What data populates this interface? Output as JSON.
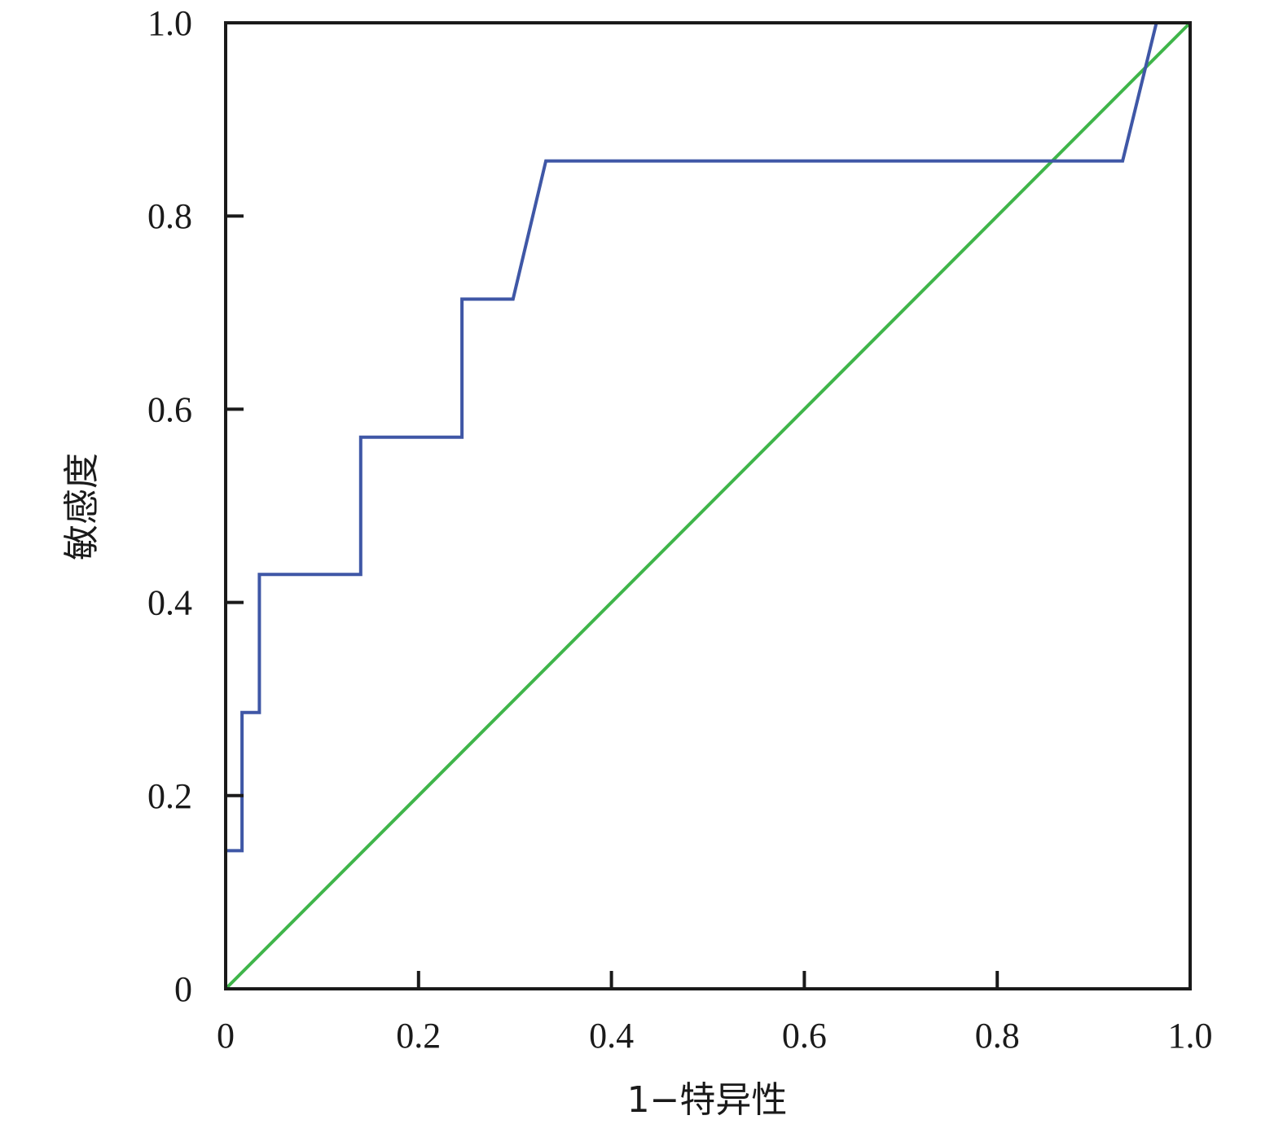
{
  "chart_data": {
    "type": "line",
    "xlabel": "1−特异性",
    "ylabel": "敏感度",
    "xlim": [
      0,
      1
    ],
    "ylim": [
      0,
      1
    ],
    "grid": false,
    "xticks": [
      0,
      0.2,
      0.4,
      0.6,
      0.8,
      1.0
    ],
    "xtick_labels": [
      "0",
      "0.2",
      "0.4",
      "0.6",
      "0.8",
      "1.0"
    ],
    "yticks": [
      0,
      0.2,
      0.4,
      0.6,
      0.8,
      1.0
    ],
    "ytick_labels": [
      "0",
      "0.2",
      "0.4",
      "0.6",
      "0.8",
      "1.0"
    ],
    "series": [
      {
        "color": "#3f57a6",
        "x": [
          0,
          0.017,
          0.017,
          0.035,
          0.035,
          0.14,
          0.14,
          0.245,
          0.245,
          0.298,
          0.332,
          0.93,
          0.965
        ],
        "y": [
          0.143,
          0.143,
          0.286,
          0.286,
          0.429,
          0.429,
          0.571,
          0.571,
          0.714,
          0.714,
          0.857,
          0.857,
          1.0
        ]
      },
      {
        "color": "#3fb54a",
        "x": [
          0,
          1
        ],
        "y": [
          0,
          1
        ]
      }
    ]
  }
}
